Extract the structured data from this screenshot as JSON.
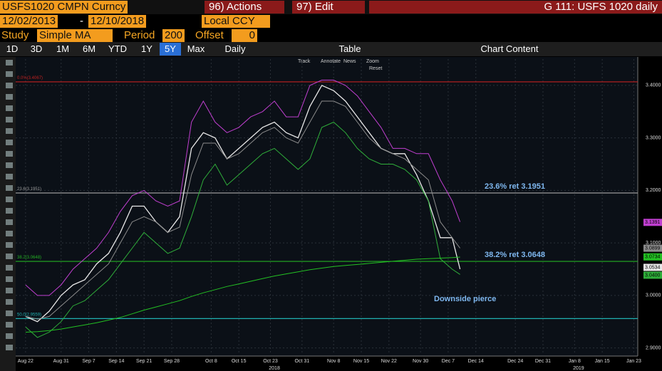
{
  "toolbar": {
    "security": "USFS1020 CMPN Curncy",
    "actions": "96) Actions",
    "edit": "97) Edit",
    "window_title": "G 111: USFS 1020 daily",
    "start_date": "12/02/2013",
    "dash": "-",
    "end_date": "12/10/2018",
    "currency": "Local CCY",
    "study_label": "Study",
    "study": "Simple MA",
    "period_label": "Period",
    "period": "200",
    "offset_label": "Offset",
    "offset": "0",
    "ranges": [
      "1D",
      "3D",
      "1M",
      "6M",
      "YTD",
      "1Y",
      "5Y",
      "Max"
    ],
    "selected_range": "5Y",
    "frequency": "Daily",
    "table": "Table",
    "chart_content": "Chart Content",
    "mini_tools": [
      "Track",
      "Annotate",
      "News",
      "Zoom"
    ],
    "reset": "Reset"
  },
  "chart_data": {
    "type": "line",
    "x": [
      0,
      3,
      6,
      9,
      12,
      15,
      18,
      21,
      24,
      27,
      30,
      33,
      36,
      39,
      42,
      45,
      48,
      51,
      54,
      57,
      60,
      63,
      66,
      69,
      72,
      75,
      78,
      81,
      84,
      87,
      90,
      93,
      96,
      99,
      102,
      105,
      108,
      110
    ],
    "series": [
      {
        "color": "#c03fd0",
        "values": [
          3.02,
          3.0,
          3.0,
          3.02,
          3.05,
          3.07,
          3.09,
          3.12,
          3.16,
          3.19,
          3.2,
          3.18,
          3.17,
          3.18,
          3.33,
          3.37,
          3.33,
          3.31,
          3.32,
          3.34,
          3.35,
          3.37,
          3.34,
          3.34,
          3.4,
          3.41,
          3.41,
          3.4,
          3.38,
          3.35,
          3.32,
          3.28,
          3.28,
          3.27,
          3.27,
          3.22,
          3.18,
          3.14
        ]
      },
      {
        "color": "#e8e8e8",
        "values": [
          2.96,
          2.95,
          2.97,
          3.0,
          3.02,
          3.03,
          3.06,
          3.08,
          3.12,
          3.17,
          3.17,
          3.14,
          3.12,
          3.15,
          3.28,
          3.31,
          3.3,
          3.26,
          3.28,
          3.3,
          3.32,
          3.33,
          3.31,
          3.3,
          3.36,
          3.4,
          3.39,
          3.37,
          3.34,
          3.31,
          3.28,
          3.27,
          3.27,
          3.23,
          3.18,
          3.11,
          3.11,
          3.05
        ]
      },
      {
        "color": "#8c8c8c",
        "values": [
          2.96,
          2.955,
          2.96,
          2.98,
          3.0,
          3.02,
          3.04,
          3.06,
          3.1,
          3.14,
          3.15,
          3.14,
          3.12,
          3.13,
          3.23,
          3.29,
          3.29,
          3.26,
          3.27,
          3.29,
          3.31,
          3.32,
          3.3,
          3.29,
          3.33,
          3.37,
          3.37,
          3.36,
          3.33,
          3.3,
          3.28,
          3.27,
          3.26,
          3.24,
          3.22,
          3.14,
          3.11,
          3.09
        ]
      },
      {
        "color": "#2fae3a",
        "values": [
          2.94,
          2.92,
          2.93,
          2.95,
          2.98,
          2.99,
          3.01,
          3.03,
          3.06,
          3.09,
          3.12,
          3.1,
          3.08,
          3.09,
          3.15,
          3.22,
          3.25,
          3.21,
          3.23,
          3.25,
          3.27,
          3.28,
          3.26,
          3.24,
          3.26,
          3.32,
          3.33,
          3.31,
          3.28,
          3.26,
          3.25,
          3.25,
          3.24,
          3.22,
          3.18,
          3.07,
          3.05,
          3.04
        ]
      },
      {
        "color": "#23c023",
        "values": [
          2.93,
          2.931,
          2.933,
          2.936,
          2.94,
          2.944,
          2.948,
          2.953,
          2.958,
          2.965,
          2.972,
          2.978,
          2.984,
          2.99,
          2.998,
          3.005,
          3.011,
          3.017,
          3.022,
          3.027,
          3.032,
          3.037,
          3.041,
          3.045,
          3.049,
          3.052,
          3.055,
          3.057,
          3.059,
          3.061,
          3.063,
          3.065,
          3.067,
          3.069,
          3.07,
          3.071,
          3.072,
          3.073
        ]
      }
    ],
    "xlim": [
      -2.5,
      155
    ],
    "ylim": [
      2.89,
      3.45
    ],
    "xticks": [
      {
        "value": 0,
        "label": "Aug 22"
      },
      {
        "value": 9,
        "label": "Aug 31"
      },
      {
        "value": 16,
        "label": "Sep 7"
      },
      {
        "value": 23,
        "label": "Sep 14"
      },
      {
        "value": 30,
        "label": "Sep 21"
      },
      {
        "value": 37,
        "label": "Sep 28"
      },
      {
        "value": 47,
        "label": "Oct 8"
      },
      {
        "value": 54,
        "label": "Oct 15"
      },
      {
        "value": 62,
        "label": "Oct 23"
      },
      {
        "value": 70,
        "label": "Oct 31"
      },
      {
        "value": 78,
        "label": "Nov 8"
      },
      {
        "value": 85,
        "label": "Nov 15"
      },
      {
        "value": 92,
        "label": "Nov 22"
      },
      {
        "value": 100,
        "label": "Nov 30"
      },
      {
        "value": 107,
        "label": "Dec 7"
      },
      {
        "value": 114,
        "label": "Dec 14"
      },
      {
        "value": 124,
        "label": "Dec 24"
      },
      {
        "value": 131,
        "label": "Dec 31"
      },
      {
        "value": 139,
        "label": "Jan 8"
      },
      {
        "value": 146,
        "label": "Jan 15"
      },
      {
        "value": 154,
        "label": "Jan 23"
      }
    ],
    "year_labels": [
      {
        "value": 63,
        "label": "2018"
      },
      {
        "value": 140,
        "label": "2019"
      }
    ],
    "yticks": [
      {
        "value": 2.9,
        "label": "2.9000"
      },
      {
        "value": 3.0,
        "label": "3.0000"
      },
      {
        "value": 3.1,
        "label": "3.1000"
      },
      {
        "value": 3.2,
        "label": "3.2000"
      },
      {
        "value": 3.3,
        "label": "3.3000"
      },
      {
        "value": 3.4,
        "label": "3.4000"
      }
    ],
    "levels": [
      {
        "value": 3.4067,
        "label": "0.0%(3.4067)",
        "color": "#c02020"
      },
      {
        "value": 3.1951,
        "label": "23.6(3.1951)",
        "color": "#9a9a9a"
      },
      {
        "value": 3.0648,
        "label": "38.2(3.0648)",
        "color": "#23b023"
      },
      {
        "value": 2.9559,
        "label": "50.0(2.9559)",
        "color": "#20b0b0"
      }
    ],
    "annotations": [
      {
        "value": 3.1951,
        "label": "23.6% ret 3.1951"
      },
      {
        "value": 3.0648,
        "label": "38.2% ret 3.0648"
      },
      {
        "value": 3.0,
        "label": "Downside pierce"
      }
    ],
    "last_values": [
      {
        "value": 3.1391,
        "label": "3.1391",
        "color": "#c03fd0"
      },
      {
        "value": 3.0899,
        "label": "3.0899",
        "color": "#8c8c8c"
      },
      {
        "value": 3.0734,
        "label": "3.0734",
        "color": "#23c023"
      },
      {
        "value": 3.0534,
        "label": "3.0534",
        "color": "#e8e8e8"
      },
      {
        "value": 3.04,
        "label": "3.0400",
        "color": "#2fae3a"
      }
    ],
    "grid": true
  }
}
